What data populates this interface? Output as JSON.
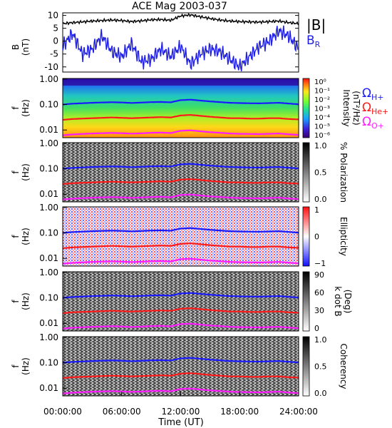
{
  "title": "ACE Mag 2003-037",
  "colors": {
    "total_field": "#000000",
    "radial_field": "#1f1fe6",
    "h_plus": "#1a1aff",
    "he_plus": "#ff1a1a",
    "o_plus": "#ff1aff"
  },
  "xaxis": {
    "label": "Time (UT)",
    "ticks": [
      "00:00:00",
      "06:00:00",
      "12:00:00",
      "18:00:00",
      "24:00:00"
    ]
  },
  "chart_data": [
    {
      "type": "line",
      "ylabel": "B\n(nT)",
      "ylim": [
        -12,
        11
      ],
      "yticks": [
        "10",
        "5",
        "0",
        "-5",
        "-10"
      ],
      "x": [
        0,
        1,
        2,
        3,
        4,
        5,
        6,
        7,
        8,
        9,
        10,
        11,
        12,
        13,
        14,
        15,
        16,
        17,
        18,
        19,
        20,
        21,
        22,
        23,
        24
      ],
      "series": [
        {
          "name": "|B|",
          "values": [
            6.8,
            7.2,
            7.5,
            7.8,
            8.0,
            8.2,
            8.0,
            7.6,
            7.9,
            8.3,
            8.4,
            8.1,
            9.8,
            10.2,
            9.5,
            8.8,
            8.2,
            7.8,
            7.6,
            7.5,
            7.4,
            7.6,
            7.8,
            7.2,
            6.8
          ]
        },
        {
          "name": "B_R",
          "values": [
            -2,
            3,
            -5,
            -3,
            2,
            -4,
            -6,
            -1,
            -8,
            -7,
            -3,
            -6,
            -2,
            -9,
            -5,
            -3,
            -4,
            -7,
            -10,
            -6,
            -2,
            0,
            4,
            2,
            -3
          ]
        }
      ]
    },
    {
      "type": "heatmap",
      "ylabel": "f\n(Hz)",
      "yticks": [
        "1.00",
        "0.10",
        "0.01"
      ],
      "colorbar_label": "Intensity\n(nT²/Hz)",
      "colorbar_ticks": [
        "10⁰",
        "10⁻¹",
        "10⁻²",
        "10⁻³",
        "10⁻⁴",
        "10⁻⁵",
        "10⁻⁶"
      ],
      "legend": [
        "Ω_H+",
        "Ω_He+",
        "Ω_O+"
      ]
    },
    {
      "type": "heatmap",
      "ylabel": "f\n(Hz)",
      "yticks": [
        "1.00",
        "0.10",
        "0.01"
      ],
      "colorbar_label": "% Polarization",
      "colorbar_ticks": [
        "1.0",
        "0.5",
        "0.0"
      ]
    },
    {
      "type": "heatmap",
      "ylabel": "f\n(Hz)",
      "yticks": [
        "1.00",
        "0.10",
        "0.01"
      ],
      "colorbar_label": "Ellipticity",
      "colorbar_ticks": [
        "1",
        "0",
        "−1"
      ]
    },
    {
      "type": "heatmap",
      "ylabel": "f\n(Hz)",
      "yticks": [
        "1.00",
        "0.10",
        "0.01"
      ],
      "colorbar_label": "k dot B\n(Deg)",
      "colorbar_ticks": [
        "90",
        "60",
        "30",
        "0"
      ]
    },
    {
      "type": "heatmap",
      "ylabel": "f\n(Hz)",
      "yticks": [
        "1.00",
        "0.10",
        "0.01"
      ],
      "colorbar_label": "Coherency",
      "colorbar_ticks": [
        "1.0",
        "0.5",
        "0.0"
      ]
    }
  ],
  "gyrofrequency_curves": {
    "x": [
      0,
      1,
      2,
      3,
      4,
      5,
      6,
      7,
      8,
      9,
      10,
      11,
      12,
      13,
      14,
      15,
      16,
      17,
      18,
      19,
      20,
      21,
      22,
      23,
      24
    ],
    "h_plus_hz": [
      0.1,
      0.108,
      0.112,
      0.117,
      0.12,
      0.123,
      0.12,
      0.115,
      0.119,
      0.124,
      0.126,
      0.122,
      0.148,
      0.155,
      0.143,
      0.132,
      0.124,
      0.117,
      0.114,
      0.112,
      0.111,
      0.114,
      0.117,
      0.109,
      0.102
    ],
    "he_plus_hz": [
      0.025,
      0.027,
      0.028,
      0.029,
      0.03,
      0.031,
      0.03,
      0.029,
      0.03,
      0.031,
      0.032,
      0.031,
      0.037,
      0.039,
      0.036,
      0.033,
      0.031,
      0.029,
      0.029,
      0.028,
      0.028,
      0.029,
      0.029,
      0.027,
      0.026
    ],
    "o_plus_hz": [
      0.0062,
      0.0067,
      0.007,
      0.0073,
      0.0075,
      0.0077,
      0.0075,
      0.0072,
      0.0074,
      0.0078,
      0.0079,
      0.0076,
      0.0093,
      0.0097,
      0.0089,
      0.0082,
      0.0078,
      0.0073,
      0.0071,
      0.007,
      0.0069,
      0.0071,
      0.0073,
      0.0068,
      0.0064
    ]
  }
}
